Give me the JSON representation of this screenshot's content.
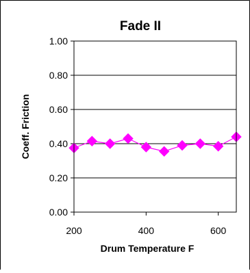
{
  "chart_data": {
    "type": "line",
    "title": "Fade II",
    "xlabel": "Drum Temperature F",
    "ylabel": "Coeff. Friction",
    "x": [
      200,
      250,
      300,
      350,
      400,
      450,
      500,
      550,
      600,
      650
    ],
    "y": [
      0.375,
      0.415,
      0.4,
      0.43,
      0.38,
      0.355,
      0.39,
      0.4,
      0.385,
      0.44
    ],
    "xlim": [
      200,
      650
    ],
    "ylim": [
      0,
      1
    ],
    "xticks": [
      200,
      400,
      600
    ],
    "xtick_labels": [
      "200",
      "400",
      "600"
    ],
    "yticks": [
      0,
      0.2,
      0.4,
      0.6,
      0.8,
      1.0
    ],
    "ytick_labels": [
      "0.00",
      "0.20",
      "0.40",
      "0.60",
      "0.80",
      "1.00"
    ],
    "grid": "horizontal",
    "legend": "none",
    "marker": "diamond",
    "series_color": "#ff00ff",
    "border_color": "#000000"
  }
}
